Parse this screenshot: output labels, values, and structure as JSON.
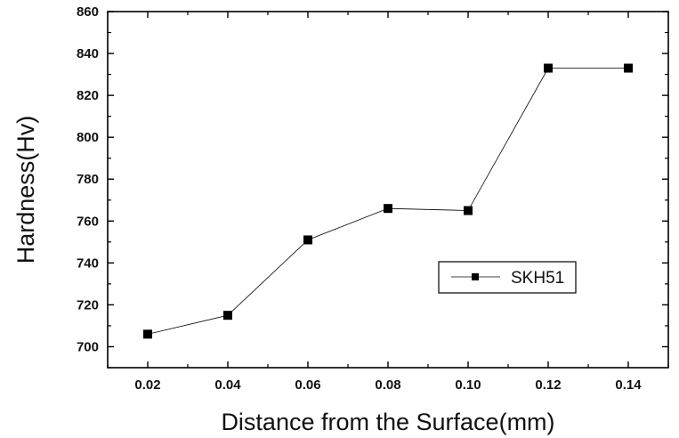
{
  "chart_data": {
    "type": "line",
    "title": "",
    "xlabel": "Distance from the Surface(mm)",
    "ylabel": "Hardness(Hv)",
    "xlim": [
      0.01,
      0.15
    ],
    "ylim": [
      690,
      860
    ],
    "x_ticks": [
      "0.02",
      "0.04",
      "0.06",
      "0.08",
      "0.10",
      "0.12",
      "0.14"
    ],
    "y_ticks": [
      "700",
      "720",
      "740",
      "760",
      "780",
      "800",
      "820",
      "840",
      "860"
    ],
    "grid": false,
    "legend_position": "right-center",
    "series": [
      {
        "name": "SKH51",
        "marker": "square",
        "color": "#000000",
        "x": [
          0.02,
          0.04,
          0.06,
          0.08,
          0.1,
          0.12,
          0.14
        ],
        "y": [
          706,
          715,
          751,
          766,
          765,
          833,
          833
        ]
      }
    ]
  }
}
